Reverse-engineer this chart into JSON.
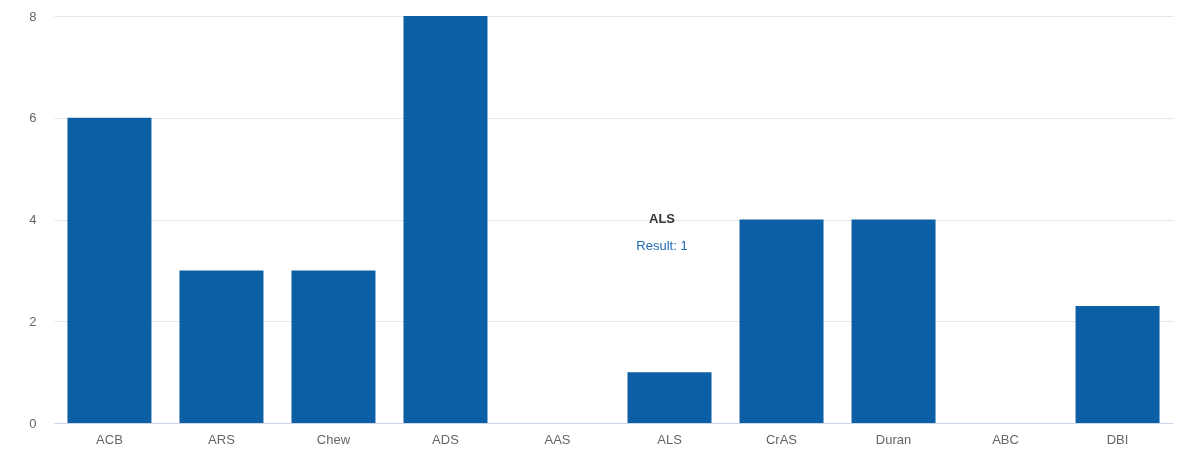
{
  "chart_data": {
    "type": "bar",
    "categories": [
      "ACB",
      "ARS",
      "Chew",
      "ADS",
      "AAS",
      "ALS",
      "CrAS",
      "Duran",
      "ABC",
      "DBI"
    ],
    "values": [
      6,
      3,
      3,
      8,
      0,
      1,
      4,
      4,
      0,
      2.3
    ],
    "color": "#0d5fa5",
    "ylim": [
      0,
      8
    ],
    "yticks": [
      0,
      2,
      4,
      6,
      8
    ],
    "grid": "y",
    "annotations": [
      "ALS",
      "Result: 1"
    ]
  }
}
